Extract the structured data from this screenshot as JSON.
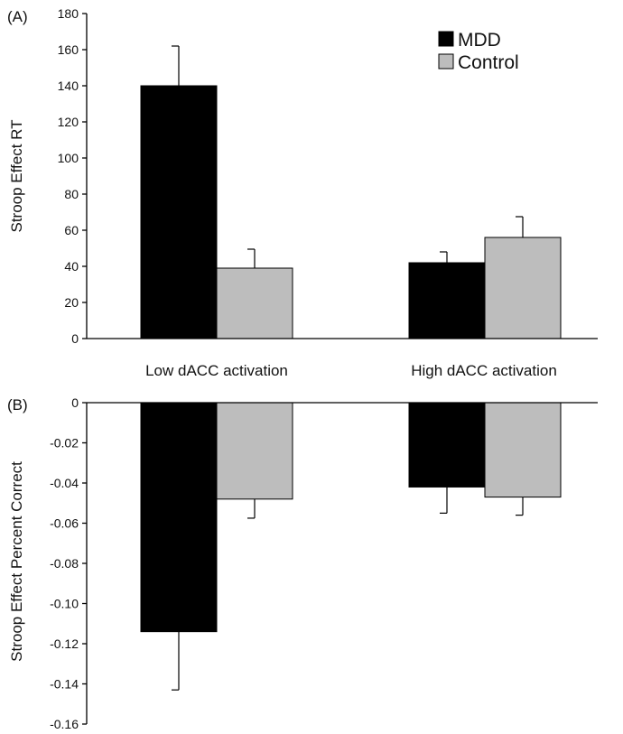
{
  "chart_data": [
    {
      "type": "bar",
      "panel_label": "(A)",
      "categories": [
        "Low dACC activation",
        "High dACC activation"
      ],
      "series": [
        {
          "name": "MDD",
          "color": "#000000",
          "values": [
            140,
            42
          ],
          "errors": [
            22,
            6
          ]
        },
        {
          "name": "Control",
          "color": "#bdbdbd",
          "values": [
            39,
            56
          ],
          "errors": [
            10.5,
            11.5
          ]
        }
      ],
      "ylabel": "Stroop Effect RT",
      "ylim": [
        0,
        180
      ],
      "yticks": [
        "0",
        "20",
        "40",
        "60",
        "80",
        "100",
        "120",
        "140",
        "160",
        "180"
      ],
      "legend": "top-right",
      "grid": false
    },
    {
      "type": "bar",
      "panel_label": "(B)",
      "categories": [
        "Low dACC activation",
        "High dACC activation"
      ],
      "series": [
        {
          "name": "MDD",
          "color": "#000000",
          "values": [
            -0.114,
            -0.042
          ],
          "errors": [
            0.029,
            0.013
          ]
        },
        {
          "name": "Control",
          "color": "#bdbdbd",
          "values": [
            -0.048,
            -0.047
          ],
          "errors": [
            0.0095,
            0.009
          ]
        }
      ],
      "ylabel": "Stroop Effect Percent Correct",
      "ylim": [
        -0.16,
        0
      ],
      "yticks": [
        "0",
        "-0.02",
        "-0.04",
        "-0.06",
        "-0.08",
        "-0.10",
        "-0.12",
        "-0.14",
        "-0.16"
      ],
      "grid": false
    }
  ]
}
